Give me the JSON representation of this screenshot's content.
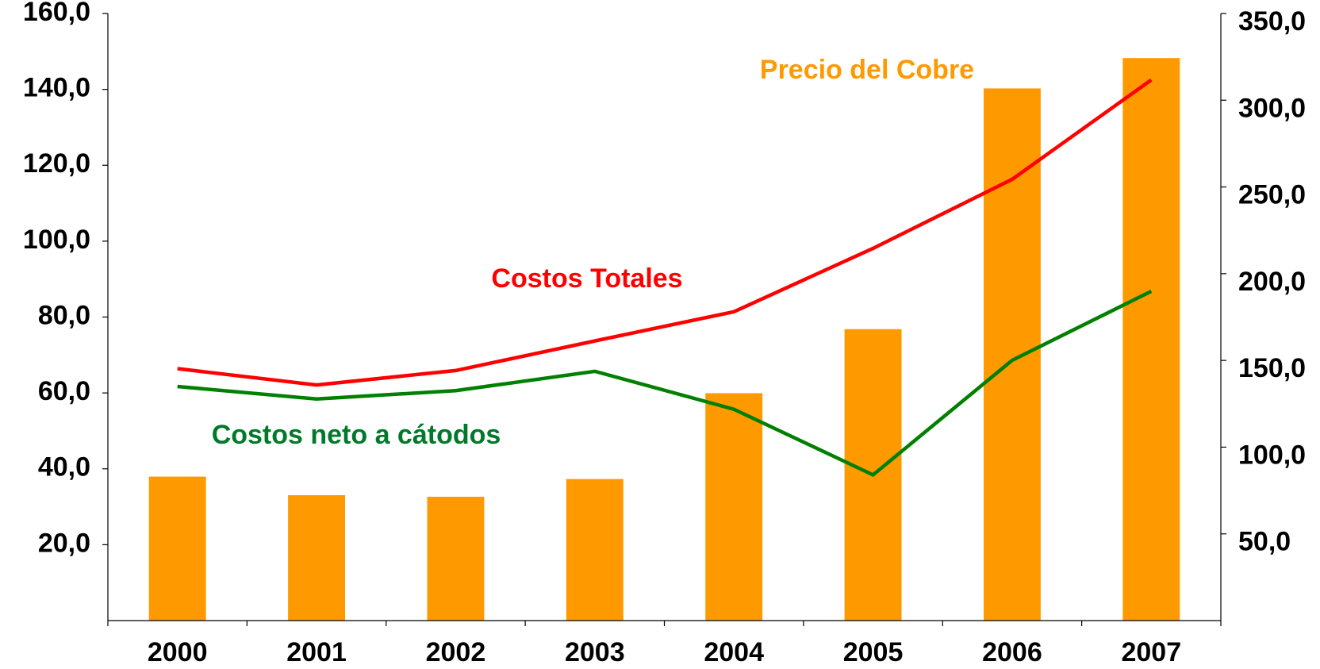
{
  "chart_data": {
    "type": "bar_line",
    "categories": [
      "2000",
      "2001",
      "2002",
      "2003",
      "2004",
      "2005",
      "2006",
      "2007"
    ],
    "series": [
      {
        "name": "Precio del Cobre",
        "color": "#FF9900",
        "type": "bar",
        "axis": "y2",
        "values": [
          83.0,
          72.3,
          71.4,
          81.6,
          131.1,
          168.0,
          306.8,
          324.3
        ]
      },
      {
        "name": "Costos Totales",
        "color": "#FF0000",
        "type": "line",
        "values": [
          66.4,
          62.1,
          65.9,
          73.7,
          81.4,
          98.1,
          116.3,
          142.5
        ]
      },
      {
        "name": "Costos neto a cátodos",
        "color": "#008000",
        "type": "line",
        "values": [
          61.7,
          58.4,
          60.6,
          65.7,
          55.7,
          38.4,
          68.6,
          86.8
        ]
      }
    ],
    "ylim": [
      0,
      160
    ],
    "yticks": [
      {
        "value": 20,
        "label": "20,0"
      },
      {
        "value": 40,
        "label": "40,0"
      },
      {
        "value": 60,
        "label": "60,0"
      },
      {
        "value": 80,
        "label": "80,0"
      },
      {
        "value": 100,
        "label": "100,0"
      },
      {
        "value": 120,
        "label": "120,0"
      },
      {
        "value": 140,
        "label": "140,0"
      },
      {
        "value": 160,
        "label": "160,0"
      }
    ],
    "y2lim": [
      0,
      350
    ],
    "y2ticks": [
      {
        "value": 50,
        "label": "50,0"
      },
      {
        "value": 100,
        "label": "100,0"
      },
      {
        "value": 150,
        "label": "150,0"
      },
      {
        "value": 200,
        "label": "200,0"
      },
      {
        "value": 250,
        "label": "250,0"
      },
      {
        "value": 300,
        "label": "300,0"
      },
      {
        "value": 350,
        "label": "350,0"
      }
    ]
  }
}
